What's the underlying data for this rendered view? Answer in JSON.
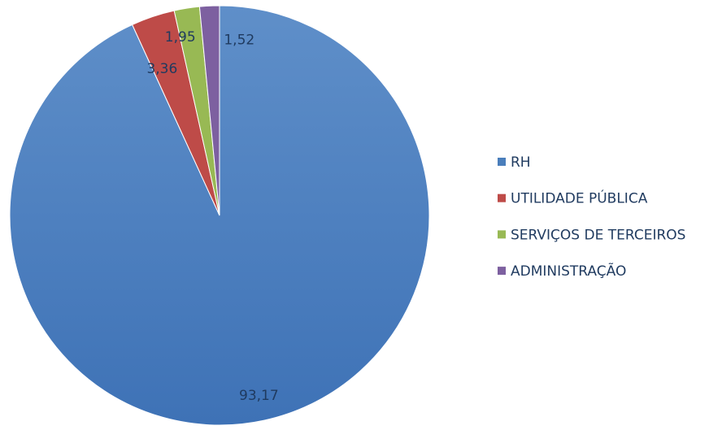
{
  "chart_data": {
    "type": "pie",
    "categories": [
      "RH",
      "UTILIDADE PÚBLICA",
      "SERVIÇOS DE TERCEIROS",
      "ADMINISTRAÇÃO"
    ],
    "values": [
      93.17,
      3.36,
      1.95,
      1.52
    ],
    "value_labels": [
      "93,17",
      "3,36",
      "1,95",
      "1,52"
    ],
    "colors": [
      "#4a7ebb",
      "#be4b48",
      "#98b954",
      "#7d60a0"
    ],
    "legend": "right"
  }
}
